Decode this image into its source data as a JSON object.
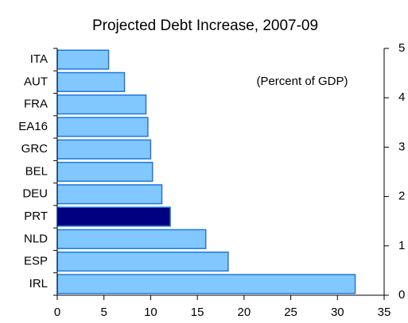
{
  "chart_data": {
    "type": "barh",
    "title": "Projected Debt Increase, 2007-09",
    "annotation": "(Percent of GDP)",
    "categories": [
      "ITA",
      "AUT",
      "FRA",
      "EA16",
      "GRC",
      "BEL",
      "DEU",
      "PRT",
      "NLD",
      "ESP",
      "IRL"
    ],
    "values": [
      5.5,
      7.2,
      9.5,
      9.7,
      10.0,
      10.2,
      11.2,
      12.1,
      15.9,
      18.3,
      31.9
    ],
    "colors": [
      "#80c8ff",
      "#80c8ff",
      "#80c8ff",
      "#80c8ff",
      "#80c8ff",
      "#80c8ff",
      "#80c8ff",
      "#000080",
      "#80c8ff",
      "#80c8ff",
      "#80c8ff"
    ],
    "edgecolor": "#1e78e0",
    "xlim": [
      0,
      35
    ],
    "xticks": [
      0,
      5,
      10,
      15,
      20,
      25,
      30,
      35
    ],
    "y2lim": [
      0,
      5
    ],
    "y2ticks": [
      0,
      1,
      2,
      3,
      4,
      5
    ]
  }
}
